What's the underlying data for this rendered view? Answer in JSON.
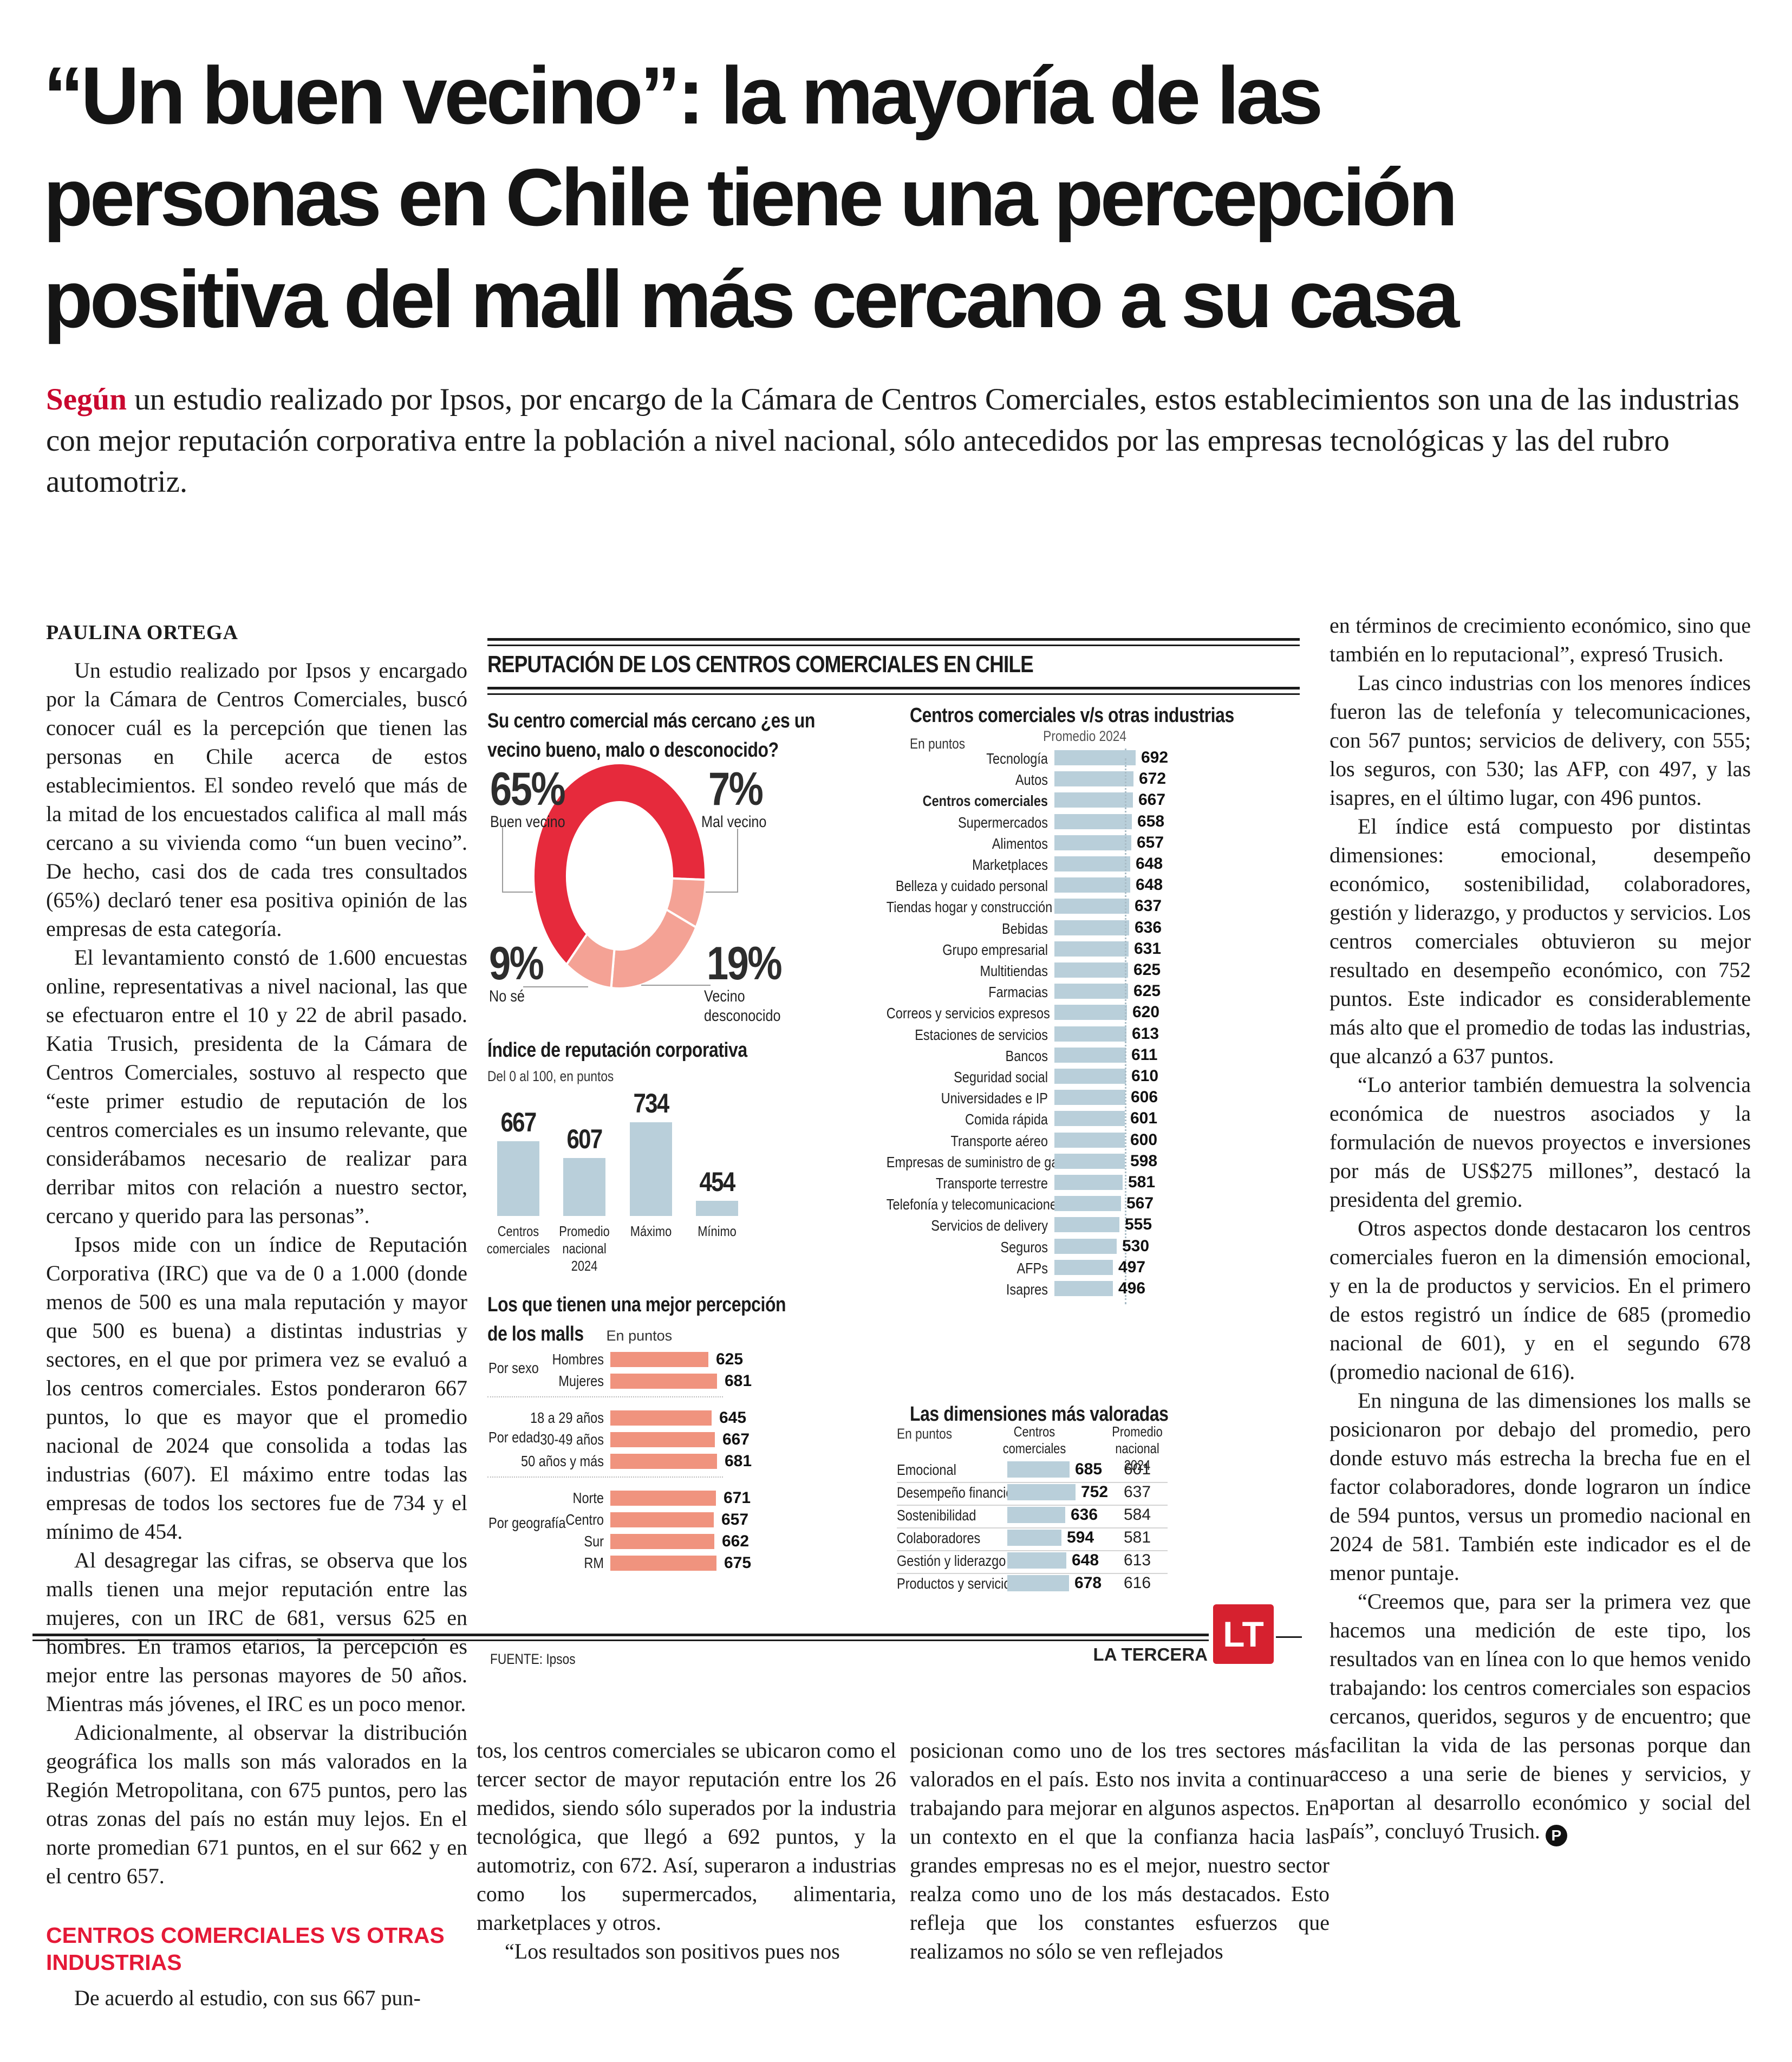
{
  "accent_red": "#c9082f",
  "accent_red_bright": "#e51937",
  "headline": {
    "lines": [
      "“Un buen vecino”: la mayoría de las",
      "personas en Chile tiene una percepción",
      "positiva del mall más cercano a su casa"
    ]
  },
  "subhead": {
    "lead": "Según",
    "rest": " un estudio realizado por Ipsos, por encargo de la Cámara de Centros Comerciales, estos establecimientos son una de las industrias con mejor reputación corporativa entre la población a nivel nacional, sólo antecedidos por las empresas tecnológicas y las del rubro automotriz."
  },
  "article": {
    "byline": "PAULINA ORTEGA",
    "end_mark": "P",
    "col1_heading": "CENTROS COMERCIALES VS OTRAS INDUSTRIAS",
    "col1a": [
      {
        "text": "Un estudio realizado por Ipsos y encargado por la Cámara de Centros Comerciales, buscó conocer cuál es la percepción que tienen las personas en Chile acerca de estos establecimientos. El sondeo reveló que más de la mitad de los encuestados califica al mall más cercano a su vivienda como “un buen vecino”. De hecho, casi dos de cada tres consultados (65%) declaró tener esa positiva opinión de las empresas de esta categoría."
      },
      {
        "text": "El levantamiento constó de 1.600 encuestas online, representativas a nivel nacional, las que se efectuaron entre el 10 y 22 de abril pasado. Katia Trusich, presidenta de la Cámara de Centros Comerciales, sostuvo al respecto que “este primer estudio de reputación de los centros comerciales es un insumo relevante, que considerábamos necesario de realizar para derribar mitos con relación a nuestro sector, cercano y querido para las personas”."
      },
      {
        "text": "Ipsos mide con un índice de Reputación Corporativa (IRC) que va de 0 a 1.000 (donde menos de 500 es una mala reputación y mayor que 500 es buena) a distintas industrias y sectores, en el que por primera vez se evaluó a los centros comerciales. Estos ponderaron 667 puntos, lo que es mayor que el promedio nacional de 2024 que consolida a todas las industrias (607). El máximo entre todas las empresas de todos los sectores fue de 734 y el mínimo de 454."
      },
      {
        "text": "Al desagregar las cifras, se observa que los malls tienen una mejor reputación entre las mujeres, con un IRC de 681, versus 625 en hombres. En tramos etarios, la percepción es mejor entre las personas mayores de 50 años. Mientras más jóvenes, el IRC es un poco menor."
      },
      {
        "text": "Adicionalmente, al observar la distribución geográfica los malls son más valorados en la Región Metropolitana, con 675 puntos, pero las otras zonas del país no están muy lejos. En el norte promedian 671 puntos, en el sur 662 y en el centro 657."
      }
    ],
    "col1b": [
      {
        "text": "De acuerdo al estudio, con sus 667 pun-"
      }
    ],
    "col2": [
      {
        "text": "tos, los centros comerciales se ubicaron como el tercer sector de mayor reputación entre los 26 medidos, siendo sólo superados por la industria tecnológica, que llegó a 692 puntos, y la automotriz, con 672. Así, superaron a industrias como los supermercados, alimentaria, marketplaces y otros.",
        "indent": false
      },
      {
        "text": "“Los resultados son positivos pues nos"
      }
    ],
    "col3": [
      {
        "text": "posicionan como uno de los tres sectores más valorados en el país. Esto nos invita a continuar trabajando para mejorar en algunos aspectos. En un contexto en el que la confianza hacia las grandes empresas no es el mejor, nuestro sector realza como uno de los más destacados. Esto refleja que los constantes esfuerzos que realizamos no sólo se ven reflejados",
        "indent": false
      }
    ],
    "col4": [
      {
        "text": "en términos de crecimiento económico, sino que también en lo reputacional”, expresó Trusich.",
        "indent": false
      },
      {
        "text": "Las cinco industrias con los menores índices fueron las de telefonía y telecomunicaciones, con 567 puntos; servicios de delivery, con 555; los seguros, con 530; las AFP, con 497, y las isapres, en el último lugar, con 496 puntos."
      },
      {
        "text": "El índice está compuesto por distintas dimensiones: emocional, desempeño económico, sostenibilidad, colaboradores, gestión y liderazgo, y productos y servicios. Los centros comerciales obtuvieron su mejor resultado en desempeño económico, con 752 puntos. Este indicador es considerablemente más alto que el promedio de todas las industrias, que alcanzó a 637 puntos."
      },
      {
        "text": "“Lo anterior también demuestra la solvencia económica de nuestros asociados y la formulación de nuevos proyectos e inversiones por más de US$275 millones”, destacó la presidenta del gremio."
      },
      {
        "text": "Otros aspectos donde destacaron los centros comerciales fueron en la dimensión emocional, y en la de productos y servicios. En el primero de estos registró un índice de 685 (promedio nacional de 601), y en el segundo 678 (promedio nacional de 616)."
      },
      {
        "text": "En ninguna de las dimensiones los malls se posicionaron por debajo del promedio, pero donde estuvo más estrecha la brecha fue en el factor colaboradores, donde lograron un índice de 594 puntos, versus un promedio nacional en 2024 de 581. También este indicador es el de menor puntaje."
      },
      {
        "text": "“Creemos que, para ser la primera vez que hacemos una medición de este tipo, los resultados van en línea con lo que hemos venido trabajando: los centros comerciales son espacios cercanos, queridos, seguros y de encuentro; que facilitan la vida de las personas porque dan acceso a una serie de bienes y servicios, y aportan al desarrollo económico y social del país”, concluyó Trusich.",
        "mark": true
      }
    ]
  },
  "infographic": {
    "title": "REPUTACIÓN DE LOS CENTROS COMERCIALES EN CHILE",
    "donut_question_l1": "Su centro comercial más cercano ¿es un",
    "donut_question_l2": "vecino bueno, malo o desconocido?",
    "index_title": "Índice de reputación corporativa",
    "index_sub": "Del 0 al 100, en puntos",
    "percep_title_l1": "Los que tienen una mejor percepción",
    "percep_title_l2_bold": "de los malls",
    "percep_title_l2_reg": " En puntos",
    "industries_title": "Centros comerciales v/s otras industrias",
    "industries_sub": "En puntos",
    "industries_avg_label": "Promedio 2024",
    "dims_title": "Las dimensiones más valoradas",
    "dims_sub": "En puntos",
    "dims_col1": "Centros\ncomerciales",
    "dims_col2": "Promedio\nnacional 2024",
    "fuente": "FUENTE: Ipsos",
    "brand": "LA TERCERA",
    "logo_text": "LT"
  },
  "chart_data": [
    {
      "type": "pie",
      "title": "Su centro comercial más cercano ¿es un vecino bueno, malo o desconocido?",
      "donut": true,
      "segments": [
        {
          "label": "Buen vecino",
          "pct": 65,
          "color": "#e62a3c"
        },
        {
          "label": "Mal vecino",
          "pct": 7,
          "color": "#f4a295"
        },
        {
          "label": "Vecino desconocido",
          "pct": 19,
          "color": "#f4a295"
        },
        {
          "label": "No sé",
          "pct": 9,
          "color": "#f4a295"
        }
      ]
    },
    {
      "type": "bar",
      "title": "Índice de reputación corporativa",
      "subtitle": "Del 0 al 100, en puntos",
      "categories": [
        "Centros\ncomerciales",
        "Promedio\nnacional 2024",
        "Máximo",
        "Mínimo"
      ],
      "values": [
        667,
        607,
        734,
        454
      ],
      "bar_color": "#b9cfda"
    },
    {
      "type": "bar",
      "orientation": "horizontal",
      "title": "Los que tienen una mejor percepción de los malls",
      "subtitle": "En puntos",
      "bar_color": "#f0937e",
      "groups": [
        {
          "label": "Por sexo",
          "items": [
            {
              "label": "Hombres",
              "value": 625
            },
            {
              "label": "Mujeres",
              "value": 681
            }
          ]
        },
        {
          "label": "Por edad",
          "items": [
            {
              "label": "18 a 29 años",
              "value": 645
            },
            {
              "label": "30-49 años",
              "value": 667
            },
            {
              "label": "50 años y más",
              "value": 681
            }
          ]
        },
        {
          "label": "Por geografía",
          "items": [
            {
              "label": "Norte",
              "value": 671
            },
            {
              "label": "Centro",
              "value": 657
            },
            {
              "label": "Sur",
              "value": 662
            },
            {
              "label": "RM",
              "value": 675
            }
          ]
        }
      ]
    },
    {
      "type": "bar",
      "orientation": "horizontal",
      "title": "Centros comerciales v/s otras industrias",
      "subtitle": "En puntos",
      "average_line": {
        "label": "Promedio 2024",
        "value": 607
      },
      "bar_color": "#b9cfda",
      "items": [
        {
          "label": "Tecnología",
          "value": 692
        },
        {
          "label": "Autos",
          "value": 672
        },
        {
          "label": "Centros comerciales",
          "value": 667,
          "bold": true
        },
        {
          "label": "Supermercados",
          "value": 658
        },
        {
          "label": "Alimentos",
          "value": 657
        },
        {
          "label": "Marketplaces",
          "value": 648
        },
        {
          "label": "Belleza y cuidado personal",
          "value": 648
        },
        {
          "label": "Tiendas hogar y construcción",
          "value": 637
        },
        {
          "label": "Bebidas",
          "value": 636
        },
        {
          "label": "Grupo empresarial",
          "value": 631
        },
        {
          "label": "Multitiendas",
          "value": 625
        },
        {
          "label": "Farmacias",
          "value": 625
        },
        {
          "label": "Correos y servicios expresos",
          "value": 620
        },
        {
          "label": "Estaciones de servicios",
          "value": 613
        },
        {
          "label": "Bancos",
          "value": 611
        },
        {
          "label": "Seguridad social",
          "value": 610
        },
        {
          "label": "Universidades e IP",
          "value": 606
        },
        {
          "label": "Comida rápida",
          "value": 601
        },
        {
          "label": "Transporte aéreo",
          "value": 600
        },
        {
          "label": "Empresas de suministro de gas",
          "value": 598
        },
        {
          "label": "Transporte terrestre",
          "value": 581
        },
        {
          "label": "Telefonía y telecomunicaciones",
          "value": 567
        },
        {
          "label": "Servicios de delivery",
          "value": 555
        },
        {
          "label": "Seguros",
          "value": 530
        },
        {
          "label": "AFPs",
          "value": 497
        },
        {
          "label": "Isapres",
          "value": 496
        }
      ]
    },
    {
      "type": "table",
      "title": "Las dimensiones más valoradas",
      "subtitle": "En puntos",
      "columns": [
        "Centros comerciales",
        "Promedio nacional 2024"
      ],
      "bar_color": "#b9cfda",
      "rows": [
        {
          "label": "Emocional",
          "cc": 685,
          "prom": 601
        },
        {
          "label": "Desempeño financiero",
          "cc": 752,
          "prom": 637
        },
        {
          "label": "Sostenibilidad",
          "cc": 636,
          "prom": 584
        },
        {
          "label": "Colaboradores",
          "cc": 594,
          "prom": 581
        },
        {
          "label": "Gestión y liderazgo",
          "cc": 648,
          "prom": 613
        },
        {
          "label": "Productos y servicios",
          "cc": 678,
          "prom": 616
        }
      ]
    }
  ]
}
